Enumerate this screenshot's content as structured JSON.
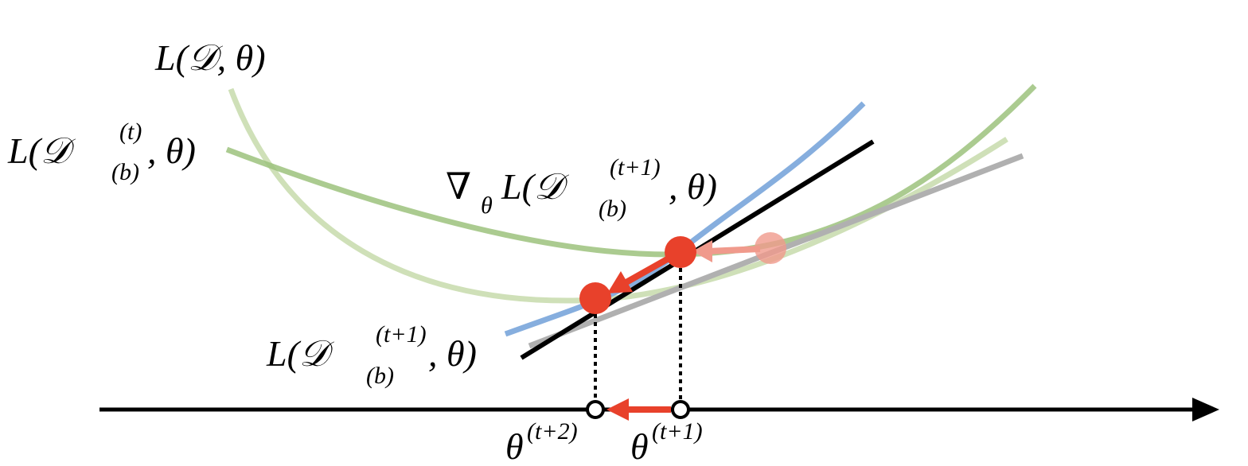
{
  "labels": [
    {
      "pre": "L(𝒟, θ)"
    },
    {
      "pre": "L(𝒟",
      "sup": "(t)",
      "sub": "(b)",
      "post": ", θ)"
    },
    {
      "pre": "∇",
      "presub": "θ",
      "mid": "L(𝒟",
      "sup": "(t+1)",
      "sub": "(b)",
      "post": ", θ)"
    },
    {
      "pre": "L(𝒟",
      "sup": "(t+1)",
      "sub": "(b)",
      "post": ", θ)"
    },
    {
      "pre": "θ",
      "sup": "(t+2)"
    },
    {
      "pre": "θ",
      "sup": "(t+1)"
    }
  ]
}
